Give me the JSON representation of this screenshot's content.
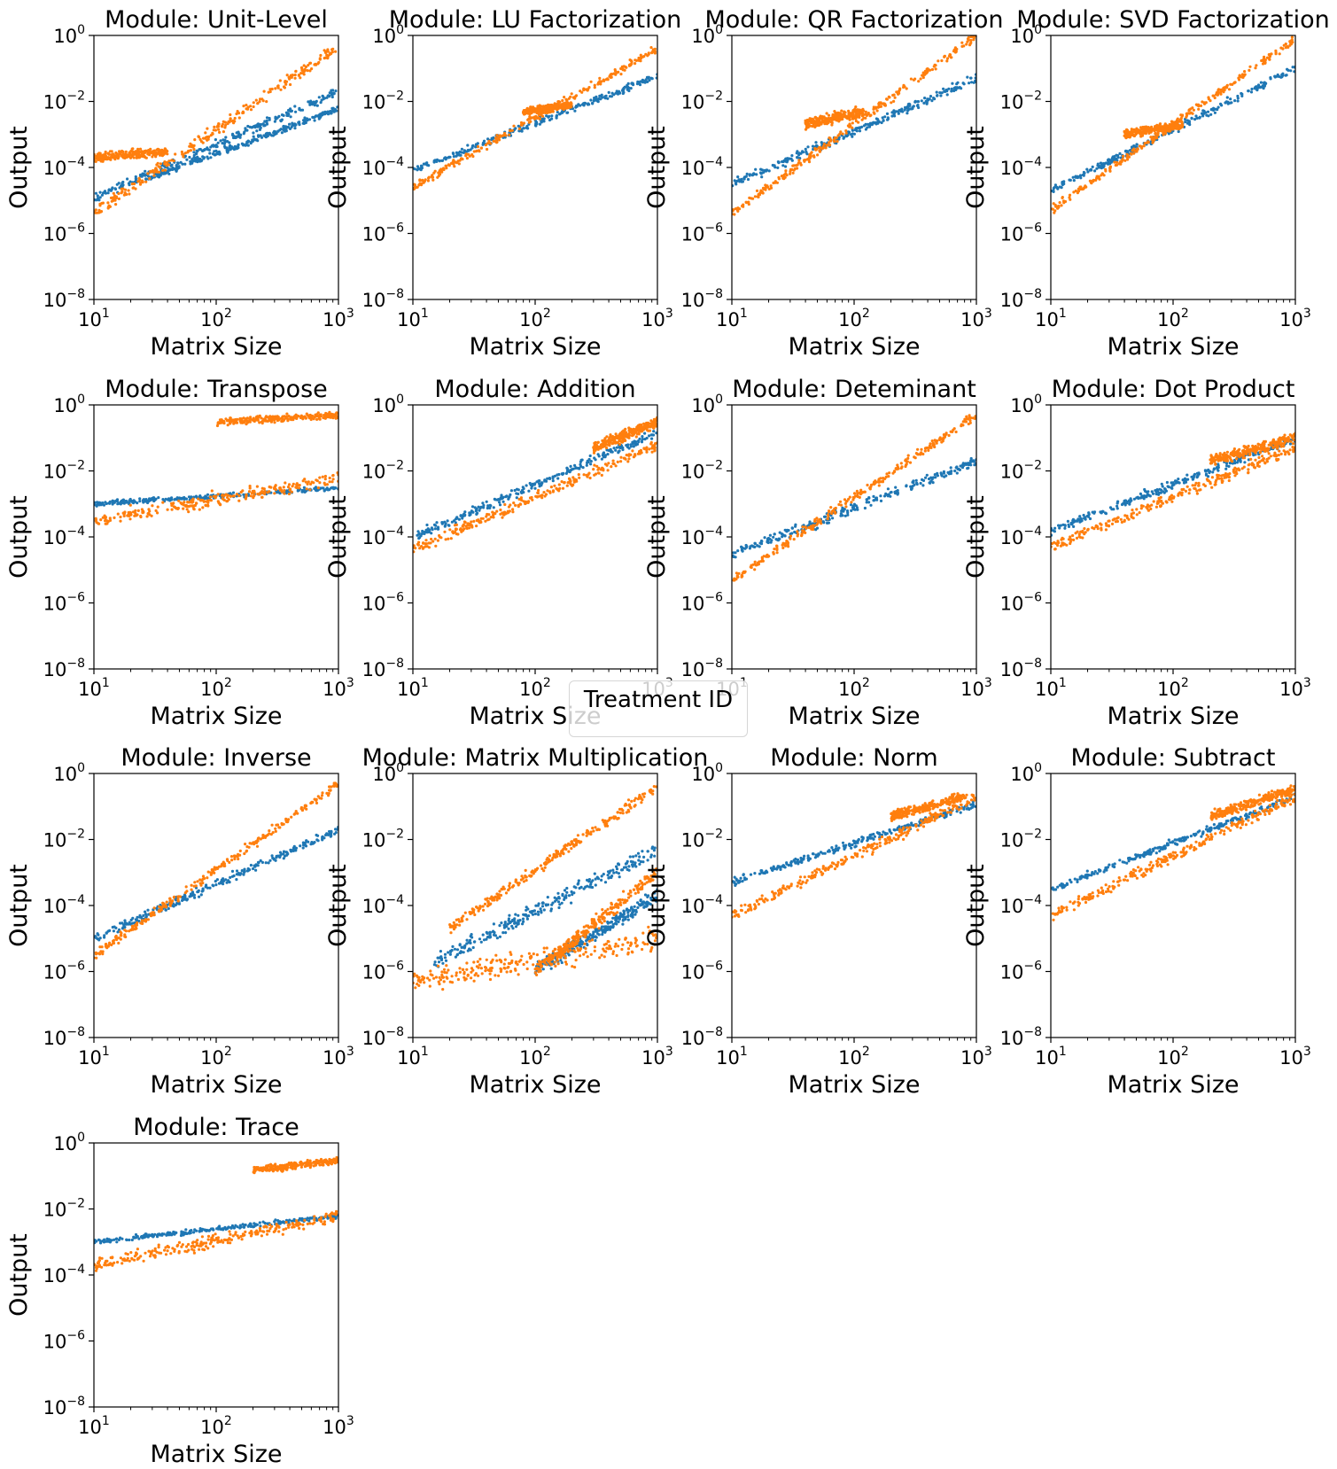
{
  "chart_data": {
    "type": "scatter",
    "xscale": "log",
    "yscale": "log",
    "xlim": [
      10,
      1000
    ],
    "ylim": [
      1e-08,
      1
    ],
    "xticks": [
      {
        "value": 10,
        "base": "10",
        "exp": "1"
      },
      {
        "value": 100,
        "base": "10",
        "exp": "2"
      },
      {
        "value": 1000,
        "base": "10",
        "exp": "3"
      }
    ],
    "yticks": [
      {
        "value": 1,
        "base": "10",
        "exp": "0"
      },
      {
        "value": 0.01,
        "base": "10",
        "exp": "−2"
      },
      {
        "value": 0.0001,
        "base": "10",
        "exp": "−4"
      },
      {
        "value": 1e-06,
        "base": "10",
        "exp": "−6"
      },
      {
        "value": 1e-08,
        "base": "10",
        "exp": "−8"
      }
    ],
    "xlabel": "Matrix Size",
    "ylabel": "Output",
    "legend": {
      "title": "Treatment ID",
      "placement": "center",
      "entries": []
    },
    "series_colors": {
      "blue": "#1f77b4",
      "orange": "#ff7f0e"
    },
    "panels": [
      {
        "title": "Module: Unit-Level",
        "series": [
          {
            "color": "#1f77b4",
            "bands": [
              {
                "x": [
                  10,
                  1000
                ],
                "y": [
                  1.2e-05,
                  0.02
                ],
                "spread": 2.5
              },
              {
                "x": [
                  25,
                  1000
                ],
                "y": [
                  4e-05,
                  0.006
                ],
                "spread": 1.8
              }
            ]
          },
          {
            "color": "#ff7f0e",
            "bands": [
              {
                "x": [
                  10,
                  1000
                ],
                "y": [
                  4e-06,
                  0.45
                ],
                "spread": 3.5
              },
              {
                "x": [
                  10,
                  40
                ],
                "y": [
                  0.0002,
                  0.0003
                ],
                "spread": 2.5
              }
            ]
          }
        ]
      },
      {
        "title": "Module: LU Factorization",
        "series": [
          {
            "color": "#1f77b4",
            "bands": [
              {
                "x": [
                  10,
                  1000
                ],
                "y": [
                  8e-05,
                  0.06
                ],
                "spread": 2.2
              }
            ]
          },
          {
            "color": "#ff7f0e",
            "bands": [
              {
                "x": [
                  10,
                  1000
                ],
                "y": [
                  2.5e-05,
                  0.4
                ],
                "spread": 2.2
              },
              {
                "x": [
                  80,
                  200
                ],
                "y": [
                  0.005,
                  0.008
                ],
                "spread": 2
              }
            ]
          }
        ]
      },
      {
        "title": "Module: QR Factorization",
        "series": [
          {
            "color": "#1f77b4",
            "bands": [
              {
                "x": [
                  10,
                  1000
                ],
                "y": [
                  3e-05,
                  0.05
                ],
                "spread": 2.5
              }
            ]
          },
          {
            "color": "#ff7f0e",
            "bands": [
              {
                "x": [
                  10,
                  1000
                ],
                "y": [
                  4e-06,
                  1.0
                ],
                "spread": 2.5
              },
              {
                "x": [
                  40,
                  120
                ],
                "y": [
                  0.002,
                  0.005
                ],
                "spread": 3
              }
            ]
          }
        ]
      },
      {
        "title": "Module: SVD Factorization",
        "series": [
          {
            "color": "#1f77b4",
            "bands": [
              {
                "x": [
                  10,
                  1000
                ],
                "y": [
                  2e-05,
                  0.1
                ],
                "spread": 2.2
              }
            ]
          },
          {
            "color": "#ff7f0e",
            "bands": [
              {
                "x": [
                  10,
                  1000
                ],
                "y": [
                  5e-06,
                  0.8
                ],
                "spread": 2.2
              },
              {
                "x": [
                  40,
                  120
                ],
                "y": [
                  0.001,
                  0.002
                ],
                "spread": 2.5
              }
            ]
          }
        ]
      },
      {
        "title": "Module: Transpose",
        "series": [
          {
            "color": "#1f77b4",
            "bands": [
              {
                "x": [
                  10,
                  1000
                ],
                "y": [
                  0.001,
                  0.003
                ],
                "spread": 1.6
              }
            ]
          },
          {
            "color": "#ff7f0e",
            "bands": [
              {
                "x": [
                  10,
                  1000
                ],
                "y": [
                  0.0003,
                  0.006
                ],
                "spread": 4
              },
              {
                "x": [
                  100,
                  1000
                ],
                "y": [
                  0.3,
                  0.5
                ],
                "spread": 2
              }
            ]
          }
        ]
      },
      {
        "title": "Module: Addition",
        "series": [
          {
            "color": "#1f77b4",
            "bands": [
              {
                "x": [
                  10,
                  1000
                ],
                "y": [
                  0.0001,
                  0.15
                ],
                "spread": 2.5
              }
            ]
          },
          {
            "color": "#ff7f0e",
            "bands": [
              {
                "x": [
                  10,
                  1000
                ],
                "y": [
                  4e-05,
                  0.06
                ],
                "spread": 3
              },
              {
                "x": [
                  300,
                  1000
                ],
                "y": [
                  0.05,
                  0.3
                ],
                "spread": 3
              }
            ]
          }
        ]
      },
      {
        "title": "Module: Deteminant",
        "series": [
          {
            "color": "#1f77b4",
            "bands": [
              {
                "x": [
                  10,
                  1000
                ],
                "y": [
                  3e-05,
                  0.02
                ],
                "spread": 3
              }
            ]
          },
          {
            "color": "#ff7f0e",
            "bands": [
              {
                "x": [
                  10,
                  1000
                ],
                "y": [
                  5e-06,
                  0.5
                ],
                "spread": 2.5
              }
            ]
          }
        ]
      },
      {
        "title": "Module: Dot Product",
        "series": [
          {
            "color": "#1f77b4",
            "bands": [
              {
                "x": [
                  10,
                  1000
                ],
                "y": [
                  0.00015,
                  0.1
                ],
                "spread": 2.5
              }
            ]
          },
          {
            "color": "#ff7f0e",
            "bands": [
              {
                "x": [
                  10,
                  1000
                ],
                "y": [
                  5e-05,
                  0.05
                ],
                "spread": 3
              },
              {
                "x": [
                  200,
                  1000
                ],
                "y": [
                  0.02,
                  0.1
                ],
                "spread": 3
              }
            ]
          }
        ]
      },
      {
        "title": "Module: Inverse",
        "series": [
          {
            "color": "#1f77b4",
            "bands": [
              {
                "x": [
                  10,
                  1000
                ],
                "y": [
                  1e-05,
                  0.02
                ],
                "spread": 2.5
              }
            ]
          },
          {
            "color": "#ff7f0e",
            "bands": [
              {
                "x": [
                  10,
                  1000
                ],
                "y": [
                  3e-06,
                  0.5
                ],
                "spread": 2.5
              }
            ]
          }
        ]
      },
      {
        "title": "Module: Matrix Multiplication",
        "series": [
          {
            "color": "#1f77b4",
            "bands": [
              {
                "x": [
                  15,
                  1000
                ],
                "y": [
                  2e-06,
                  0.005
                ],
                "spread": 5
              },
              {
                "x": [
                  100,
                  1000
                ],
                "y": [
                  1e-06,
                  0.0002
                ],
                "spread": 4
              }
            ]
          },
          {
            "color": "#ff7f0e",
            "bands": [
              {
                "x": [
                  10,
                  1000
                ],
                "y": [
                  5e-07,
                  1e-05
                ],
                "spread": 10
              },
              {
                "x": [
                  20,
                  1000
                ],
                "y": [
                  2e-05,
                  0.4
                ],
                "spread": 3
              },
              {
                "x": [
                  100,
                  1000
                ],
                "y": [
                  1e-06,
                  0.001
                ],
                "spread": 4
              }
            ]
          }
        ]
      },
      {
        "title": "Module: Norm",
        "series": [
          {
            "color": "#1f77b4",
            "bands": [
              {
                "x": [
                  10,
                  1000
                ],
                "y": [
                  0.0005,
                  0.12
                ],
                "spread": 2
              }
            ]
          },
          {
            "color": "#ff7f0e",
            "bands": [
              {
                "x": [
                  10,
                  1000
                ],
                "y": [
                  5e-05,
                  0.2
                ],
                "spread": 3
              },
              {
                "x": [
                  200,
                  800
                ],
                "y": [
                  0.05,
                  0.2
                ],
                "spread": 2.5
              }
            ]
          }
        ]
      },
      {
        "title": "Module: Subtract",
        "series": [
          {
            "color": "#1f77b4",
            "bands": [
              {
                "x": [
                  10,
                  1000
                ],
                "y": [
                  0.0003,
                  0.2
                ],
                "spread": 2
              }
            ]
          },
          {
            "color": "#ff7f0e",
            "bands": [
              {
                "x": [
                  10,
                  1000
                ],
                "y": [
                  5e-05,
                  0.2
                ],
                "spread": 3
              },
              {
                "x": [
                  200,
                  1000
                ],
                "y": [
                  0.05,
                  0.35
                ],
                "spread": 2.5
              }
            ]
          }
        ]
      },
      {
        "title": "Module: Trace",
        "series": [
          {
            "color": "#1f77b4",
            "bands": [
              {
                "x": [
                  10,
                  1000
                ],
                "y": [
                  0.001,
                  0.006
                ],
                "spread": 1.6
              }
            ]
          },
          {
            "color": "#ff7f0e",
            "bands": [
              {
                "x": [
                  10,
                  1000
                ],
                "y": [
                  0.0002,
                  0.006
                ],
                "spread": 3.5
              },
              {
                "x": [
                  200,
                  1000
                ],
                "y": [
                  0.15,
                  0.3
                ],
                "spread": 2
              }
            ]
          }
        ]
      }
    ]
  }
}
